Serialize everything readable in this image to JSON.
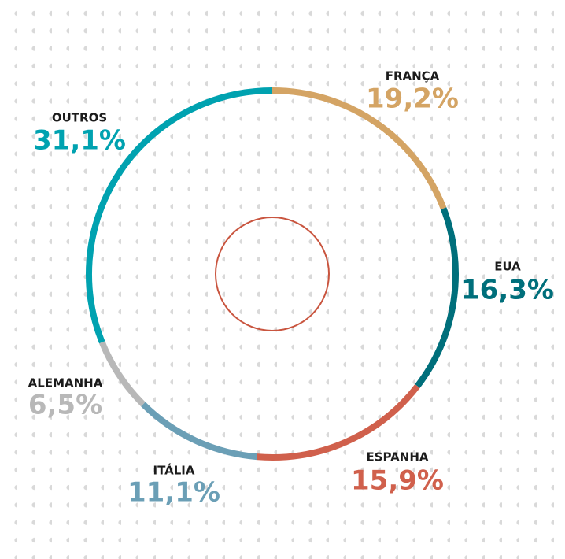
{
  "chart_data": {
    "type": "donut",
    "categories": [
      "FRANÇA",
      "EUA",
      "ESPANHA",
      "ITÁLIA",
      "ALEMANHA",
      "OUTROS"
    ],
    "values": [
      19.2,
      16.3,
      15.9,
      11.1,
      6.5,
      31.1
    ],
    "value_labels": [
      "19,2%",
      "16,3%",
      "15,9%",
      "11,1%",
      "6,5%",
      "31,1%"
    ],
    "colors": [
      "#d4a464",
      "#006f7b",
      "#d0604c",
      "#6b9fb6",
      "#b8b8b8",
      "#00a2b0"
    ]
  }
}
